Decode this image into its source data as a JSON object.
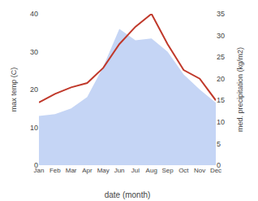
{
  "chart_data": {
    "type": "line",
    "categories": [
      "Jan",
      "Feb",
      "Mar",
      "Apr",
      "May",
      "Jun",
      "Jul",
      "Aug",
      "Sep",
      "Oct",
      "Nov",
      "Dec"
    ],
    "xlabel": "date (month)",
    "ylabel": "max temp (C)",
    "y2label": "med. precipitation (kg/m2)",
    "series": [
      {
        "type": "area",
        "color": "#c5d5f5",
        "values": [
          13.0,
          13.5,
          15.0,
          18.0,
          26.0,
          36.0,
          33.0,
          33.5,
          30.0,
          24.0,
          20.0,
          16.5
        ]
      },
      {
        "type": "line",
        "axis": "y2",
        "color": "#c0392b",
        "values": [
          14.5,
          16.5,
          18.0,
          19.0,
          22.5,
          28.0,
          32.0,
          35.0,
          28.0,
          22.0,
          20.0,
          15.0
        ]
      }
    ],
    "ylim": [
      0,
      40
    ],
    "yticks": [
      0,
      10,
      20,
      30,
      40
    ],
    "y2lim": [
      0,
      35
    ],
    "y2ticks": [
      0,
      5,
      10,
      15,
      20,
      25,
      30,
      35
    ],
    "grid": false
  }
}
